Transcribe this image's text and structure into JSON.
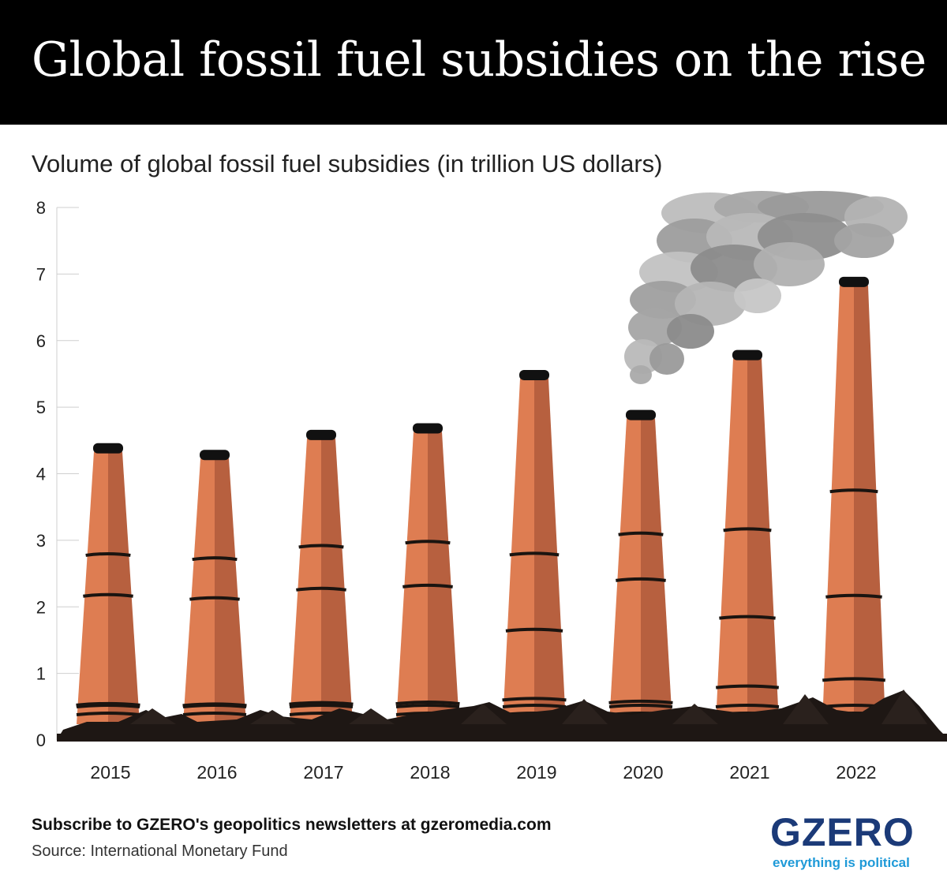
{
  "header": {
    "title": "Global fossil fuel subsidies on the rise"
  },
  "chart_data": {
    "type": "bar",
    "title": "Global fossil fuel subsidies on the rise",
    "subtitle": "Volume of global fossil fuel subsidies (in trillion US dollars)",
    "xlabel": "",
    "ylabel": "",
    "categories": [
      "2015",
      "2016",
      "2017",
      "2018",
      "2019",
      "2020",
      "2021",
      "2022"
    ],
    "values": [
      4.4,
      4.3,
      4.6,
      4.7,
      5.5,
      4.9,
      5.8,
      6.9
    ],
    "ylim": [
      0,
      8
    ],
    "yticks": [
      0,
      1,
      2,
      3,
      4,
      5,
      6,
      7,
      8
    ],
    "grid": false,
    "legend": "none",
    "colors": {
      "chimney_light": "#de7d52",
      "chimney_dark": "#b7603f",
      "chimney_band": "#1a1410",
      "chimney_cap": "#111111",
      "smoke": "#8f8f8f",
      "rubble": "#1e1714"
    }
  },
  "footer": {
    "cta": "Subscribe to GZERO's geopolitics newsletters at gzeromedia.com",
    "source": "Source: International Monetary Fund"
  },
  "logo": {
    "wordmark": "GZERO",
    "tagline": "everything is political",
    "wordmark_color": "#1b3a78",
    "tagline_color": "#1f9ad8"
  }
}
